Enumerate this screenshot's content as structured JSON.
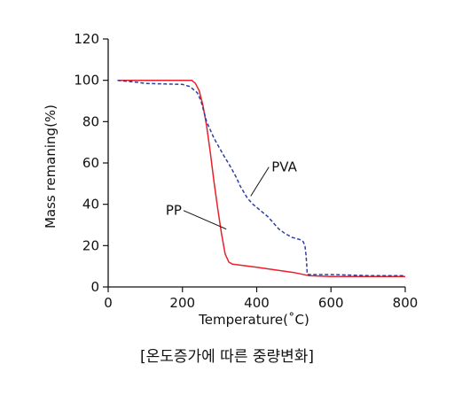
{
  "caption": "[온도증가에 따른 중량변화]",
  "chart_data": {
    "type": "line",
    "xlabel": "Temperature(˚C)",
    "ylabel": "Mass remaning(%)",
    "xlim": [
      0,
      800
    ],
    "ylim": [
      0,
      120
    ],
    "x_ticks": [
      0,
      200,
      400,
      600,
      800
    ],
    "y_ticks": [
      0,
      20,
      40,
      60,
      80,
      100,
      120
    ],
    "grid": false,
    "series": [
      {
        "name": "PP",
        "color": "#e8202a",
        "style": "solid",
        "points": [
          [
            25,
            100
          ],
          [
            100,
            100
          ],
          [
            200,
            100
          ],
          [
            225,
            100
          ],
          [
            235,
            98.5
          ],
          [
            245,
            95
          ],
          [
            255,
            88
          ],
          [
            265,
            78
          ],
          [
            275,
            65
          ],
          [
            285,
            51
          ],
          [
            295,
            38
          ],
          [
            305,
            26
          ],
          [
            315,
            16
          ],
          [
            325,
            12
          ],
          [
            335,
            11
          ],
          [
            400,
            9.5
          ],
          [
            500,
            7
          ],
          [
            540,
            5.5
          ],
          [
            600,
            5
          ],
          [
            700,
            5
          ],
          [
            800,
            5
          ]
        ]
      },
      {
        "name": "PVA",
        "color": "#2e3f9e",
        "style": "dashed",
        "points": [
          [
            25,
            100
          ],
          [
            80,
            99
          ],
          [
            100,
            98.5
          ],
          [
            200,
            98
          ],
          [
            220,
            97
          ],
          [
            240,
            94
          ],
          [
            250,
            90
          ],
          [
            265,
            80
          ],
          [
            285,
            72
          ],
          [
            310,
            64
          ],
          [
            330,
            58
          ],
          [
            345,
            53
          ],
          [
            355,
            49
          ],
          [
            365,
            46
          ],
          [
            375,
            43
          ],
          [
            390,
            40
          ],
          [
            410,
            37
          ],
          [
            430,
            34
          ],
          [
            445,
            31
          ],
          [
            460,
            28
          ],
          [
            475,
            26
          ],
          [
            495,
            24
          ],
          [
            515,
            23
          ],
          [
            525,
            22
          ],
          [
            530,
            20
          ],
          [
            533,
            15
          ],
          [
            535,
            10
          ],
          [
            536,
            6
          ],
          [
            545,
            6
          ],
          [
            600,
            6
          ],
          [
            700,
            5.5
          ],
          [
            800,
            5.5
          ]
        ]
      }
    ],
    "annotations": [
      {
        "text": "PVA",
        "target_x": 384,
        "target_y": 44,
        "label_x": 440,
        "label_y": 58
      },
      {
        "text": "PP",
        "target_x": 318,
        "target_y": 28,
        "label_x": 198,
        "label_y": 37
      }
    ]
  }
}
